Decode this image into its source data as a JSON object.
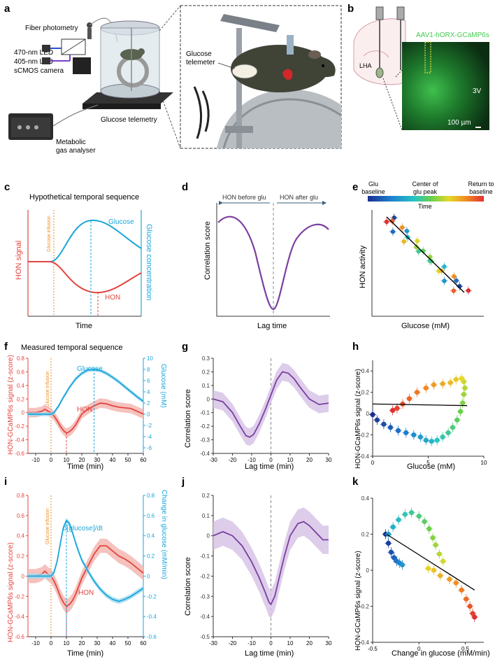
{
  "colors": {
    "hon": "#e3443f",
    "hon_band": "#f3b3ad",
    "glucose": "#1aa6dc",
    "glucose_band": "#9fd9ee",
    "corr": "#7b3fa0",
    "corr_band": "#d7c4e6",
    "infusion": "#ee8a1f",
    "fit": "#000000",
    "histology_bg": "#0b2d12",
    "histology_green": "#46d454"
  },
  "panel_a": {
    "letter": "a",
    "fiber_photometry": "Fiber photometry",
    "led470": "470-nm LED",
    "led405": "405-nm LED",
    "camera": "sCMOS camera",
    "telemetry": "Glucose telemetry",
    "analyser_1": "Metabolic",
    "analyser_2": "gas analyser",
    "telemeter_1": "Glucose",
    "telemeter_2": "telemeter"
  },
  "panel_b": {
    "letter": "b",
    "virus": "AAV1-hORX-GCaMP6s",
    "lha": "LHA",
    "v3": "3V",
    "scale": "100 µm"
  },
  "panel_c": {
    "letter": "c",
    "title": "Hypothetical temporal sequence",
    "ylabel_left": "HON signal",
    "ylabel_right": "Glucose concentration",
    "xlabel": "Time",
    "infusion": "Glucose infusion",
    "glucose": "Glucose",
    "hon": "HON"
  },
  "panel_d": {
    "letter": "d",
    "ylabel": "Correlation score",
    "xlabel": "Lag time",
    "before": "HON before glu",
    "after": "HON after glu"
  },
  "panel_e": {
    "letter": "e",
    "ylabel": "HON activity",
    "xlabel": "Glucose (mM)",
    "cb_left_1": "Glu",
    "cb_left_2": "baseline",
    "cb_mid_1": "Center of",
    "cb_mid_2": "glu peak",
    "cb_right_1": "Return to",
    "cb_right_2": "baseline",
    "cb_time": "Time"
  },
  "panel_f": {
    "letter": "f",
    "title": "Measured temporal sequence",
    "ylabel_left": "HON-GCaMP6s signal (z-score)",
    "ylabel_right": "Glucose (mM)",
    "xlabel": "Time (min)",
    "infusion": "Glucose infusion",
    "glucose": "Glucose",
    "hon": "HON",
    "xticks": [
      "-10",
      "0",
      "10",
      "20",
      "30",
      "40",
      "50",
      "60"
    ],
    "yticks_left": [
      "-0.6",
      "-0.4",
      "-0.2",
      "0",
      "0.2",
      "0.4",
      "0.6",
      "0.8"
    ],
    "yticks_right": [
      "-6",
      "-4",
      "-2",
      "0",
      "2",
      "4",
      "6",
      "8",
      "10"
    ]
  },
  "panel_g": {
    "letter": "g",
    "ylabel": "Correlation score",
    "xlabel": "Lag time (min)",
    "xticks": [
      "-30",
      "-20",
      "-10",
      "0",
      "10",
      "20",
      "30"
    ],
    "yticks": [
      "-0.4",
      "-0.3",
      "-0.2",
      "-0.1",
      "0",
      "0.1",
      "0.2",
      "0.3"
    ]
  },
  "panel_h": {
    "letter": "h",
    "ylabel": "HON-GCaMP6s signal (z-score)",
    "xlabel": "Glucose (mM)",
    "xticks": [
      "0",
      "5",
      "10"
    ],
    "yticks": [
      "-0.4",
      "-0.2",
      "0",
      "0.2",
      "0.4"
    ]
  },
  "panel_i": {
    "letter": "i",
    "ylabel_left": "HON-GCaMP6s signal (z-score)",
    "ylabel_right": "Change in glucose (mM/min)",
    "xlabel": "Time (min)",
    "infusion": "Glucose infusion",
    "dglu": "d[glucose]/dt",
    "hon": "HON",
    "xticks": [
      "-10",
      "0",
      "10",
      "20",
      "30",
      "40",
      "50",
      "60"
    ],
    "yticks_left": [
      "-0.6",
      "-0.4",
      "-0.2",
      "0",
      "0.2",
      "0.4",
      "0.6",
      "0.8"
    ],
    "yticks_right": [
      "-0.6",
      "-0.4",
      "-0.2",
      "0",
      "0.2",
      "0.4",
      "0.6",
      "0.8"
    ]
  },
  "panel_j": {
    "letter": "j",
    "ylabel": "Correlation score",
    "xlabel": "Lag time (min)",
    "xticks": [
      "-30",
      "-20",
      "-10",
      "0",
      "10",
      "20",
      "30"
    ],
    "yticks": [
      "-0.5",
      "-0.4",
      "-0.3",
      "-0.2",
      "-0.1",
      "0",
      "0.1",
      "0.2"
    ]
  },
  "panel_k": {
    "letter": "k",
    "ylabel": "HON-GCaMP6s signal (z-score)",
    "xlabel": "Change in glucose (mM/min)",
    "xticks": [
      "-0.5",
      "0",
      "0.5"
    ],
    "yticks": [
      "-0.4",
      "-0.2",
      "0",
      "0.2",
      "0.4"
    ]
  },
  "chart_data": [
    {
      "id": "f",
      "type": "line",
      "xlim": [
        -15,
        60
      ],
      "ylim": [
        -0.6,
        0.8
      ],
      "ylim_right": [
        -7,
        10
      ],
      "series": [
        {
          "name": "HON",
          "axis": "left",
          "x": [
            -15,
            -10,
            -6,
            -4,
            -2,
            0,
            2,
            4,
            6,
            8,
            10,
            12,
            14,
            16,
            18,
            20,
            24,
            28,
            32,
            36,
            40,
            44,
            48,
            52,
            56,
            60
          ],
          "y": [
            0,
            0,
            0.02,
            0.05,
            0.02,
            0,
            -0.05,
            -0.12,
            -0.2,
            -0.26,
            -0.3,
            -0.28,
            -0.24,
            -0.18,
            -0.1,
            -0.02,
            0.05,
            0.1,
            0.14,
            0.13,
            0.1,
            0.08,
            0.07,
            0.06,
            0.02,
            -0.02
          ],
          "err": 0.07
        },
        {
          "name": "Glucose",
          "axis": "right",
          "x": [
            -15,
            -5,
            0,
            2,
            5,
            8,
            12,
            16,
            20,
            24,
            28,
            32,
            36,
            40,
            44,
            48,
            52,
            56,
            60
          ],
          "y": [
            0,
            0,
            0,
            0.3,
            1.5,
            3,
            4.8,
            6.3,
            7.3,
            7.9,
            8,
            7.8,
            7.3,
            6.6,
            5.8,
            4.9,
            4,
            3.1,
            2.3
          ],
          "err": 0.35
        }
      ]
    },
    {
      "id": "g",
      "type": "line",
      "xlim": [
        -30,
        30
      ],
      "ylim": [
        -0.4,
        0.3
      ],
      "series": [
        {
          "name": "Correlation",
          "x": [
            -30,
            -25,
            -20,
            -16,
            -13,
            -11,
            -9,
            -6,
            -3,
            0,
            3,
            6,
            9,
            12,
            15,
            20,
            25,
            30
          ],
          "y": [
            0,
            -0.02,
            -0.1,
            -0.2,
            -0.27,
            -0.28,
            -0.26,
            -0.18,
            -0.08,
            0.03,
            0.14,
            0.2,
            0.19,
            0.15,
            0.09,
            0.0,
            -0.04,
            -0.03
          ],
          "err": 0.065
        }
      ]
    },
    {
      "id": "h",
      "type": "scatter",
      "xlim": [
        0,
        10
      ],
      "ylim": [
        -0.4,
        0.5
      ],
      "points": [
        [
          0,
          -0.01
        ],
        [
          0.4,
          -0.06
        ],
        [
          1,
          -0.1
        ],
        [
          1.6,
          -0.13
        ],
        [
          2.3,
          -0.16
        ],
        [
          3,
          -0.18
        ],
        [
          3.7,
          -0.2
        ],
        [
          4.3,
          -0.22
        ],
        [
          4.8,
          -0.25
        ],
        [
          5.3,
          -0.26
        ],
        [
          5.8,
          -0.25
        ],
        [
          6.3,
          -0.22
        ],
        [
          6.8,
          -0.18
        ],
        [
          7.2,
          -0.13
        ],
        [
          7.6,
          -0.06
        ],
        [
          7.9,
          0.02
        ],
        [
          8.1,
          0.1
        ],
        [
          8.2,
          0.18
        ],
        [
          8.3,
          0.24
        ],
        [
          8.2,
          0.3
        ],
        [
          8,
          0.33
        ],
        [
          7.5,
          0.32
        ],
        [
          7,
          0.29
        ],
        [
          6.3,
          0.28
        ],
        [
          5.5,
          0.27
        ],
        [
          4.8,
          0.24
        ],
        [
          4,
          0.2
        ],
        [
          3.3,
          0.14
        ],
        [
          2.7,
          0.09
        ],
        [
          2.2,
          0.05
        ],
        [
          1.8,
          0.03
        ]
      ],
      "fit": [
        [
          0,
          0.09
        ],
        [
          8.5,
          0.075
        ]
      ]
    },
    {
      "id": "i",
      "type": "line",
      "xlim": [
        -15,
        60
      ],
      "ylim": [
        -0.6,
        0.8
      ],
      "series": [
        {
          "name": "HON",
          "axis": "left",
          "x": [
            -15,
            -10,
            -6,
            -4,
            -2,
            0,
            2,
            4,
            6,
            8,
            10,
            12,
            14,
            16,
            18,
            20,
            24,
            28,
            32,
            36,
            40,
            44,
            48,
            52,
            56,
            60
          ],
          "y": [
            0,
            0,
            0.02,
            0.05,
            0.02,
            0,
            -0.05,
            -0.12,
            -0.2,
            -0.26,
            -0.3,
            -0.28,
            -0.24,
            -0.18,
            -0.1,
            -0.02,
            0.1,
            0.22,
            0.3,
            0.3,
            0.25,
            0.2,
            0.17,
            0.13,
            0.08,
            0.03
          ],
          "err": 0.07
        },
        {
          "name": "d[glucose]/dt",
          "axis": "right",
          "x": [
            -15,
            -5,
            0,
            2,
            4,
            6,
            8,
            10,
            12,
            14,
            16,
            18,
            20,
            24,
            28,
            32,
            36,
            40,
            44,
            48,
            52,
            56,
            60
          ],
          "y": [
            0,
            0,
            0,
            0.04,
            0.15,
            0.32,
            0.48,
            0.55,
            0.52,
            0.43,
            0.33,
            0.24,
            0.16,
            0.05,
            -0.05,
            -0.13,
            -0.19,
            -0.23,
            -0.25,
            -0.23,
            -0.2,
            -0.16,
            -0.12
          ],
          "err": 0.025
        }
      ]
    },
    {
      "id": "j",
      "type": "line",
      "xlim": [
        -30,
        30
      ],
      "ylim": [
        -0.5,
        0.2
      ],
      "series": [
        {
          "name": "Correlation",
          "x": [
            -30,
            -25,
            -20,
            -15,
            -10,
            -6,
            -3,
            -1,
            0,
            2,
            4,
            7,
            10,
            14,
            17,
            20,
            24,
            27,
            30
          ],
          "y": [
            0,
            0.02,
            0,
            -0.05,
            -0.13,
            -0.21,
            -0.28,
            -0.33,
            -0.34,
            -0.3,
            -0.22,
            -0.1,
            0,
            0.06,
            0.07,
            0.05,
            0.01,
            -0.02,
            -0.02
          ],
          "err": 0.07
        }
      ]
    },
    {
      "id": "k",
      "type": "scatter",
      "xlim": [
        -0.5,
        0.7
      ],
      "ylim": [
        -0.4,
        0.4
      ],
      "points": [
        [
          -0.36,
          0.2
        ],
        [
          -0.33,
          0.15
        ],
        [
          -0.3,
          0.1
        ],
        [
          -0.27,
          0.07
        ],
        [
          -0.24,
          0.05
        ],
        [
          -0.21,
          0.04
        ],
        [
          -0.18,
          0.03
        ],
        [
          -0.33,
          0.2
        ],
        [
          -0.28,
          0.24
        ],
        [
          -0.22,
          0.28
        ],
        [
          -0.15,
          0.31
        ],
        [
          -0.08,
          0.32
        ],
        [
          0,
          0.3
        ],
        [
          0.06,
          0.27
        ],
        [
          0.11,
          0.23
        ],
        [
          0.15,
          0.18
        ],
        [
          0.18,
          0.14
        ],
        [
          0.22,
          0.09
        ],
        [
          0.26,
          0.05
        ],
        [
          0.1,
          0.01
        ],
        [
          0.16,
          0.0
        ],
        [
          0.23,
          -0.03
        ],
        [
          0.33,
          -0.05
        ],
        [
          0.4,
          -0.07
        ],
        [
          0.46,
          -0.11
        ],
        [
          0.51,
          -0.16
        ],
        [
          0.55,
          -0.2
        ],
        [
          0.58,
          -0.24
        ],
        [
          0.6,
          -0.26
        ]
      ],
      "fit": [
        [
          -0.35,
          0.2
        ],
        [
          0.6,
          -0.11
        ]
      ]
    }
  ]
}
